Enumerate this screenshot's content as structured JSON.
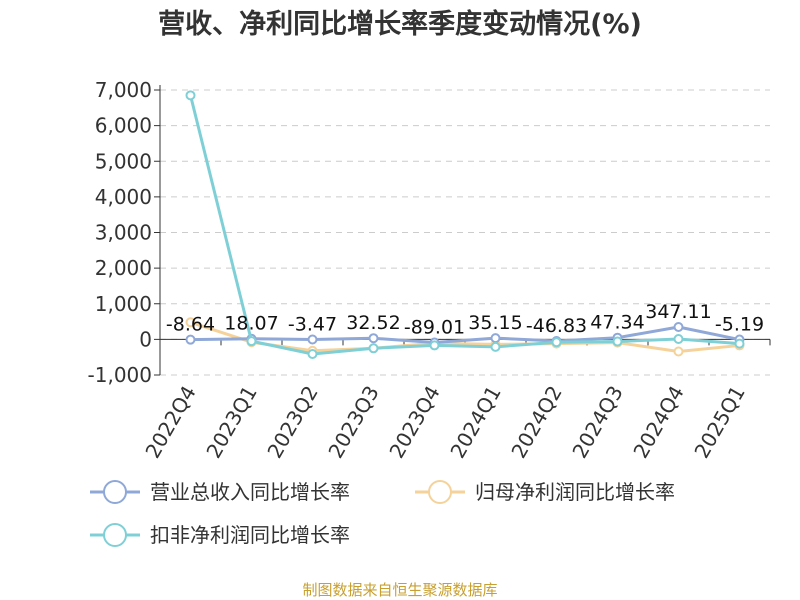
{
  "chart_data": {
    "type": "line",
    "title": "营收、净利同比增长率季度变动情况(%)",
    "categories": [
      "2022Q4",
      "2023Q1",
      "2023Q2",
      "2023Q3",
      "2023Q4",
      "2024Q1",
      "2024Q2",
      "2024Q3",
      "2024Q4",
      "2025Q1"
    ],
    "ylim": [
      -1000,
      7000
    ],
    "yticks": [
      -1000,
      0,
      1000,
      2000,
      3000,
      4000,
      5000,
      6000,
      7000
    ],
    "ytick_labels": [
      "-1,000",
      "0",
      "1,000",
      "2,000",
      "3,000",
      "4,000",
      "5,000",
      "6,000",
      "7,000"
    ],
    "grid": true,
    "legend_position": "bottom",
    "series": [
      {
        "name": "营业总收入同比增长率",
        "color": "#8fa8d8",
        "values": [
          -8.64,
          18.07,
          -3.47,
          32.52,
          -89.01,
          35.15,
          -46.83,
          47.34,
          347.11,
          -5.19
        ],
        "data_labels": [
          "-8.64",
          "18.07",
          "-3.47",
          "32.52",
          "-89.01",
          "35.15",
          "-46.83",
          "47.34",
          "347.11",
          "-5.19"
        ]
      },
      {
        "name": "归母净利润同比增长率",
        "color": "#f5d29a",
        "values": [
          480,
          -80,
          -320,
          -250,
          -110,
          -140,
          -120,
          -90,
          -340,
          -170
        ]
      },
      {
        "name": "扣非净利润同比增长率",
        "color": "#7fd0d6",
        "values": [
          6850,
          -50,
          -410,
          -250,
          -170,
          -210,
          -80,
          -60,
          10,
          -120
        ]
      }
    ],
    "source": "制图数据来自恒生聚源数据库"
  }
}
